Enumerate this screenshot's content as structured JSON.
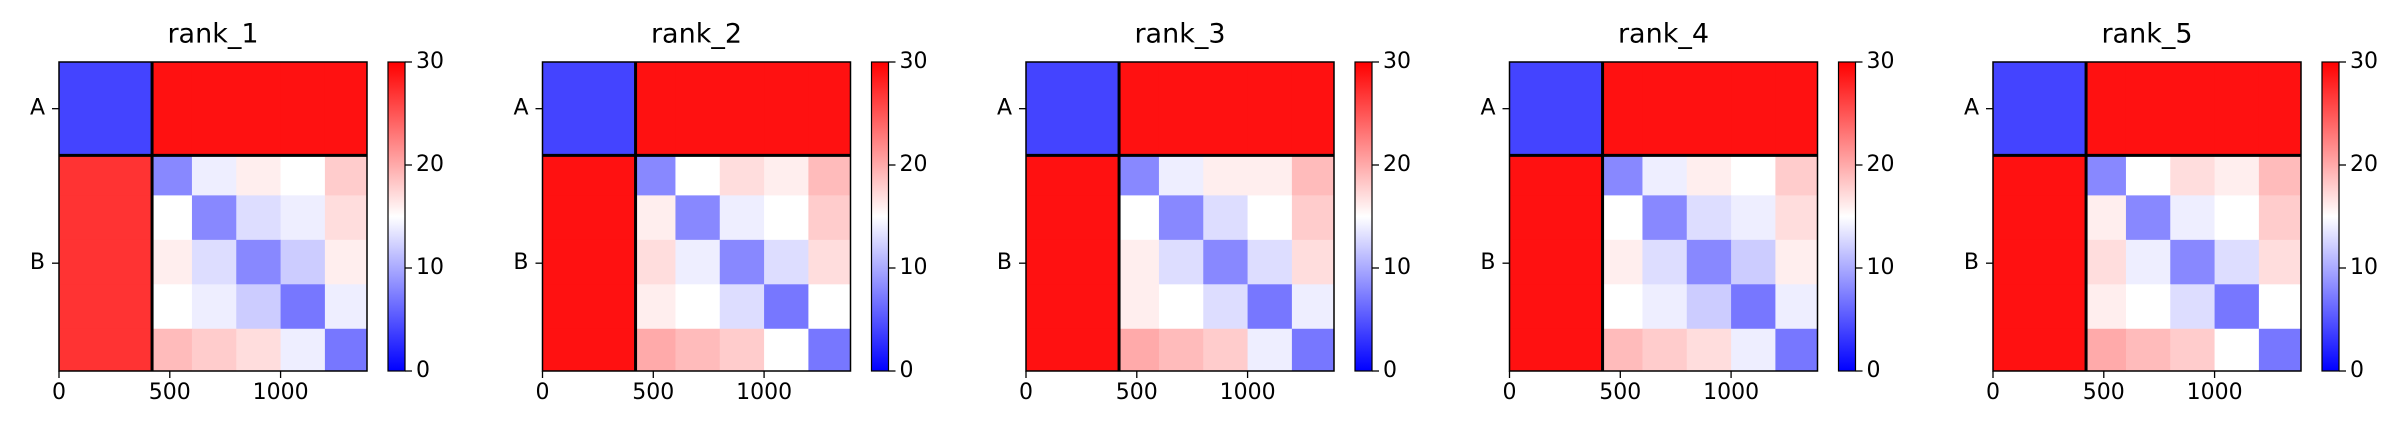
{
  "chart_data": [
    {
      "type": "heatmap",
      "title": "rank_1",
      "x_edges": [
        0,
        420,
        600,
        800,
        1000,
        1200,
        1390
      ],
      "y_edges": [
        0,
        420,
        600,
        800,
        1000,
        1200,
        1390
      ],
      "values": [
        [
          4,
          29,
          29,
          29,
          29,
          29
        ],
        [
          27,
          8,
          14,
          16,
          15,
          18
        ],
        [
          27,
          15,
          8,
          13,
          14,
          17
        ],
        [
          27,
          16,
          13,
          8,
          12,
          16
        ],
        [
          27,
          15,
          14,
          12,
          7,
          14
        ],
        [
          27,
          19,
          18,
          17,
          14,
          7
        ]
      ],
      "xlim": [
        0,
        1390
      ],
      "ylim": [
        1390,
        0
      ],
      "xticks": [
        0,
        500,
        1000
      ],
      "yticks": [
        {
          "value": 210,
          "label": "A"
        },
        {
          "value": 905,
          "label": "B"
        }
      ],
      "boundaries": [
        420
      ],
      "clim": [
        0,
        30
      ],
      "cticks": [
        0,
        10,
        20,
        30
      ],
      "colormap": [
        "#0000ff",
        "#ffffff",
        "#ff0000"
      ]
    },
    {
      "type": "heatmap",
      "title": "rank_2",
      "x_edges": [
        0,
        420,
        600,
        800,
        1000,
        1200,
        1390
      ],
      "y_edges": [
        0,
        420,
        600,
        800,
        1000,
        1200,
        1390
      ],
      "values": [
        [
          4,
          29,
          29,
          29,
          29,
          29
        ],
        [
          29,
          8,
          15,
          17,
          16,
          19
        ],
        [
          29,
          16,
          8,
          14,
          15,
          18
        ],
        [
          29,
          17,
          14,
          8,
          13,
          17
        ],
        [
          29,
          16,
          15,
          13,
          7,
          15
        ],
        [
          29,
          20,
          19,
          18,
          15,
          7
        ]
      ],
      "xlim": [
        0,
        1390
      ],
      "ylim": [
        1390,
        0
      ],
      "xticks": [
        0,
        500,
        1000
      ],
      "yticks": [
        {
          "value": 210,
          "label": "A"
        },
        {
          "value": 905,
          "label": "B"
        }
      ],
      "boundaries": [
        420
      ],
      "clim": [
        0,
        30
      ],
      "cticks": [
        0,
        10,
        20,
        30
      ],
      "colormap": [
        "#0000ff",
        "#ffffff",
        "#ff0000"
      ]
    },
    {
      "type": "heatmap",
      "title": "rank_3",
      "x_edges": [
        0,
        420,
        600,
        800,
        1000,
        1200,
        1390
      ],
      "y_edges": [
        0,
        420,
        600,
        800,
        1000,
        1200,
        1390
      ],
      "values": [
        [
          4,
          29,
          29,
          29,
          29,
          29
        ],
        [
          29,
          8,
          14,
          16,
          16,
          19
        ],
        [
          29,
          15,
          8,
          13,
          15,
          18
        ],
        [
          29,
          16,
          13,
          8,
          13,
          17
        ],
        [
          29,
          16,
          15,
          13,
          7,
          14
        ],
        [
          29,
          20,
          19,
          18,
          14,
          7
        ]
      ],
      "xlim": [
        0,
        1390
      ],
      "ylim": [
        1390,
        0
      ],
      "xticks": [
        0,
        500,
        1000
      ],
      "yticks": [
        {
          "value": 210,
          "label": "A"
        },
        {
          "value": 905,
          "label": "B"
        }
      ],
      "boundaries": [
        420
      ],
      "clim": [
        0,
        30
      ],
      "cticks": [
        0,
        10,
        20,
        30
      ],
      "colormap": [
        "#0000ff",
        "#ffffff",
        "#ff0000"
      ]
    },
    {
      "type": "heatmap",
      "title": "rank_4",
      "x_edges": [
        0,
        420,
        600,
        800,
        1000,
        1200,
        1390
      ],
      "y_edges": [
        0,
        420,
        600,
        800,
        1000,
        1200,
        1390
      ],
      "values": [
        [
          4,
          29,
          29,
          29,
          29,
          29
        ],
        [
          29,
          8,
          14,
          16,
          15,
          18
        ],
        [
          29,
          15,
          8,
          13,
          14,
          17
        ],
        [
          29,
          16,
          13,
          8,
          12,
          16
        ],
        [
          29,
          15,
          14,
          12,
          7,
          14
        ],
        [
          29,
          19,
          18,
          17,
          14,
          7
        ]
      ],
      "xlim": [
        0,
        1390
      ],
      "ylim": [
        1390,
        0
      ],
      "xticks": [
        0,
        500,
        1000
      ],
      "yticks": [
        {
          "value": 210,
          "label": "A"
        },
        {
          "value": 905,
          "label": "B"
        }
      ],
      "boundaries": [
        420
      ],
      "clim": [
        0,
        30
      ],
      "cticks": [
        0,
        10,
        20,
        30
      ],
      "colormap": [
        "#0000ff",
        "#ffffff",
        "#ff0000"
      ]
    },
    {
      "type": "heatmap",
      "title": "rank_5",
      "x_edges": [
        0,
        420,
        600,
        800,
        1000,
        1200,
        1390
      ],
      "y_edges": [
        0,
        420,
        600,
        800,
        1000,
        1200,
        1390
      ],
      "values": [
        [
          4,
          29,
          29,
          29,
          29,
          29
        ],
        [
          29,
          8,
          15,
          17,
          16,
          19
        ],
        [
          29,
          16,
          8,
          14,
          15,
          18
        ],
        [
          29,
          17,
          14,
          8,
          13,
          17
        ],
        [
          29,
          16,
          15,
          13,
          7,
          15
        ],
        [
          29,
          20,
          19,
          18,
          15,
          7
        ]
      ],
      "xlim": [
        0,
        1390
      ],
      "ylim": [
        1390,
        0
      ],
      "xticks": [
        0,
        500,
        1000
      ],
      "yticks": [
        {
          "value": 210,
          "label": "A"
        },
        {
          "value": 905,
          "label": "B"
        }
      ],
      "boundaries": [
        420
      ],
      "clim": [
        0,
        30
      ],
      "cticks": [
        0,
        10,
        20,
        30
      ],
      "colormap": [
        "#0000ff",
        "#ffffff",
        "#ff0000"
      ]
    }
  ]
}
